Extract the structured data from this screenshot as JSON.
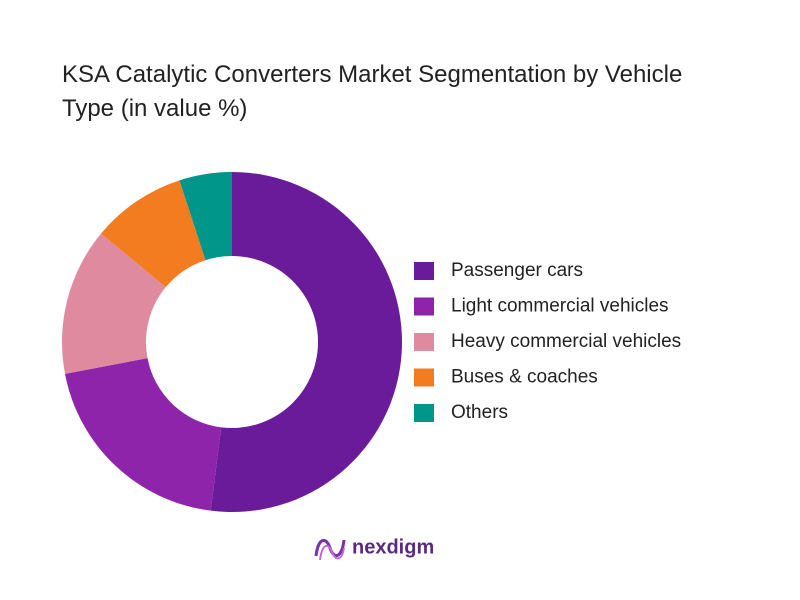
{
  "chart_data": {
    "type": "pie",
    "title": "KSA Catalytic Converters Market Segmentation by Vehicle Type (in value %)",
    "categories": [
      "Passenger cars",
      "Light commercial vehicles",
      "Heavy commercial vehicles",
      "Buses & coaches",
      "Others"
    ],
    "values": [
      52,
      20,
      14,
      9,
      5
    ],
    "colors": [
      "#6a1b9a",
      "#8e24aa",
      "#e08aa0",
      "#f47c20",
      "#00968a"
    ],
    "legend": "right"
  },
  "logo": "nexdigm"
}
